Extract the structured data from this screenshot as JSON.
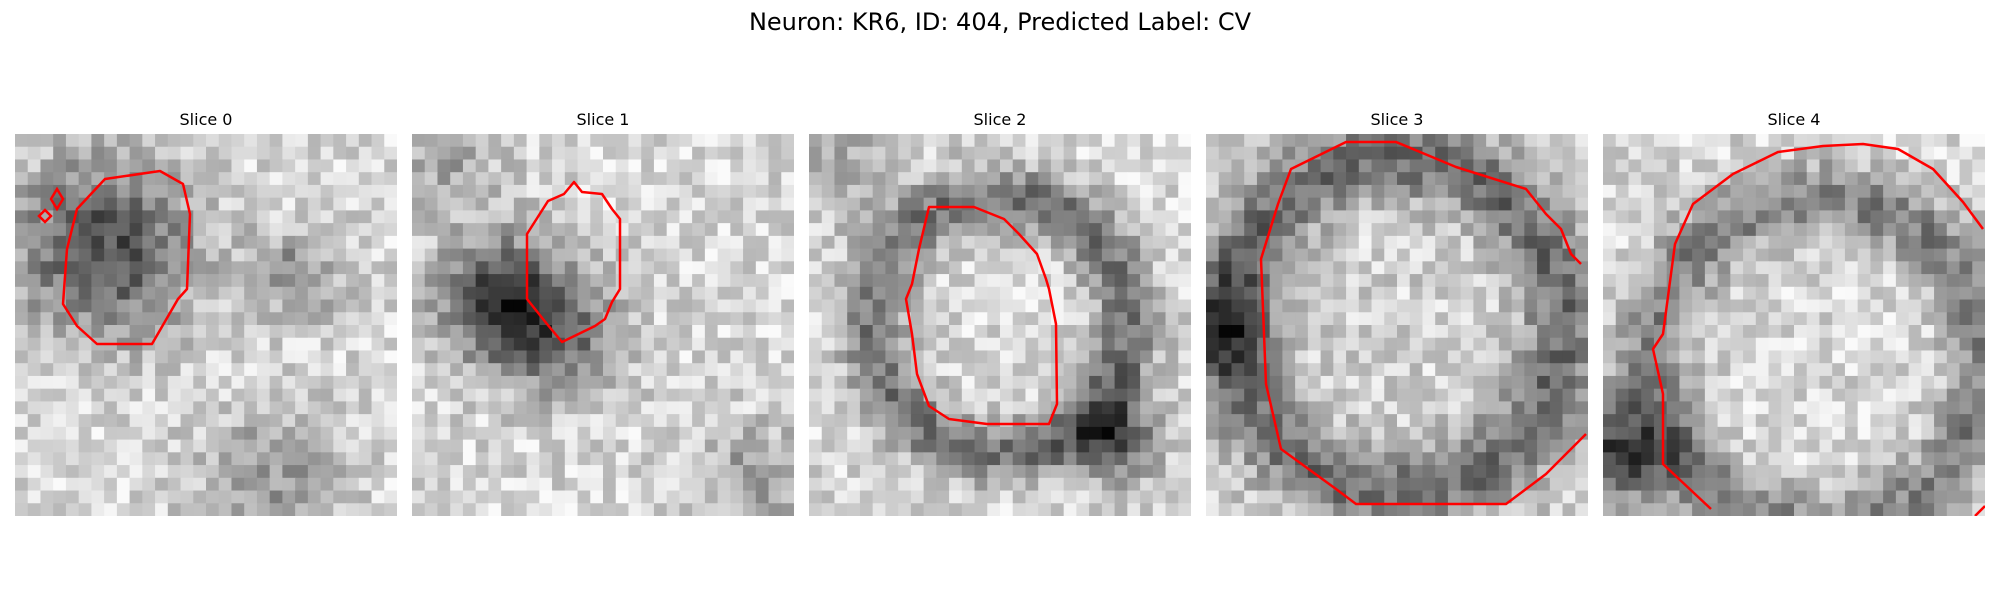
{
  "figure": {
    "title": "Neuron: KR6, ID: 404, Predicted Label: CV",
    "contour_color": "#ff0000"
  },
  "panels": [
    {
      "title": "Slice 0",
      "icon": "grayscale-microscopy-patch-with-red-contour",
      "seed": 11,
      "scene": "dark-blob-top-left"
    },
    {
      "title": "Slice 1",
      "icon": "grayscale-microscopy-patch-with-red-contour",
      "seed": 23,
      "scene": "dark-diagonal-band"
    },
    {
      "title": "Slice 2",
      "icon": "grayscale-microscopy-patch-with-red-contour",
      "seed": 37,
      "scene": "dark-ring"
    },
    {
      "title": "Slice 3",
      "icon": "grayscale-microscopy-patch-with-red-contour",
      "seed": 53,
      "scene": "large-dark-ring"
    },
    {
      "title": "Slice 4",
      "icon": "grayscale-microscopy-patch-with-red-contour",
      "seed": 71,
      "scene": "partial-ring-right"
    }
  ]
}
